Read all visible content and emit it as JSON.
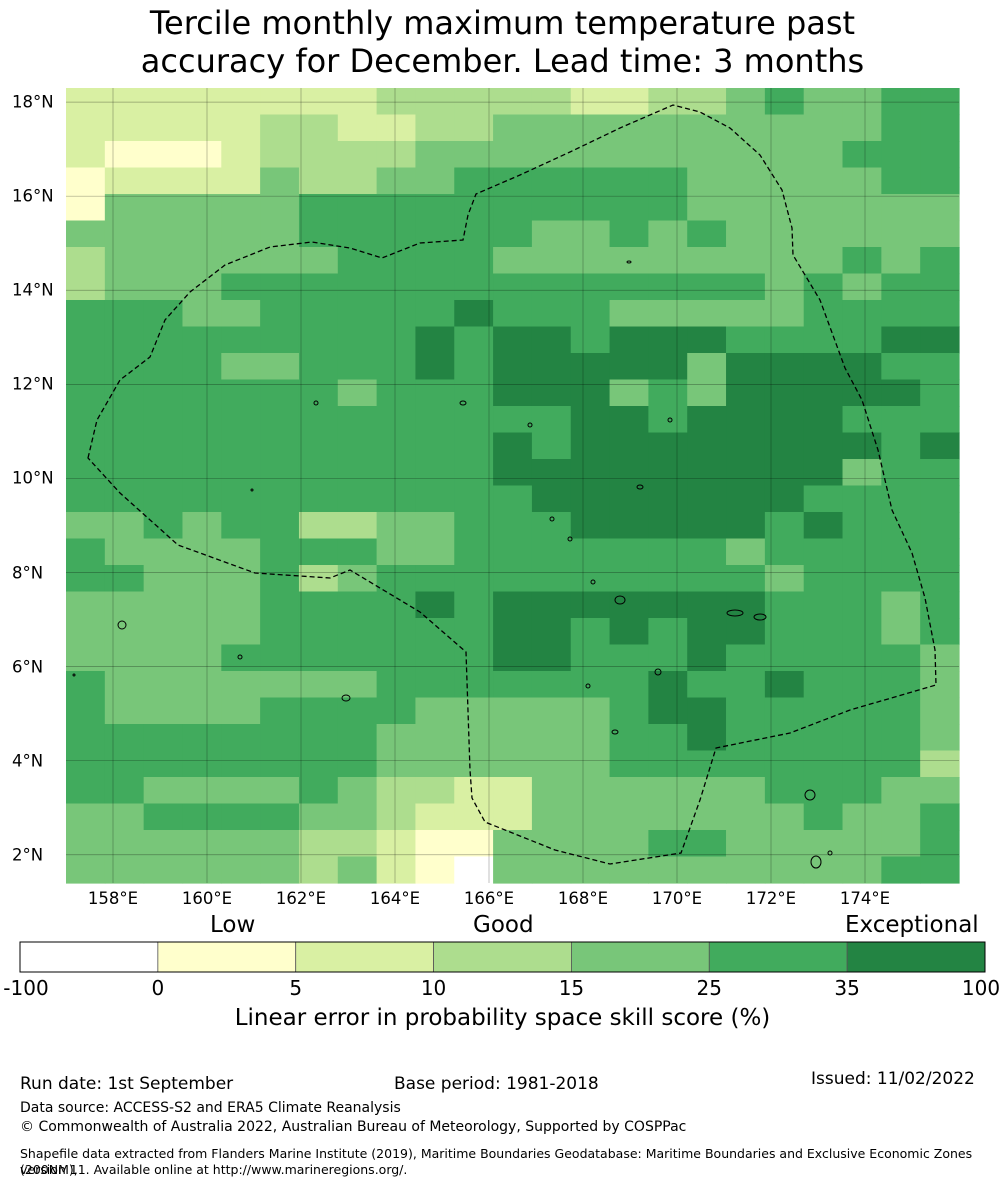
{
  "title_line1": "Tercile monthly maximum temperature past",
  "title_line2": "accuracy for December. Lead time: 3 months",
  "map": {
    "lon_range": [
      157.0,
      176.0
    ],
    "lat_range": [
      1.4,
      18.3
    ],
    "lat_ticks": [
      "18°N",
      "16°N",
      "14°N",
      "12°N",
      "10°N",
      "8°N",
      "6°N",
      "4°N",
      "2°N"
    ],
    "lon_ticks": [
      "158°E",
      "160°E",
      "162°E",
      "164°E",
      "166°E",
      "168°E",
      "170°E",
      "172°E",
      "174°E"
    ],
    "grid_cells": "skill-score heatmap by skill category",
    "boundary": "dashed EEZ line"
  },
  "colorbar": {
    "category_labels": [
      "Low",
      "Good",
      "Exceptional"
    ],
    "ticks": [
      "-100",
      "0",
      "5",
      "10",
      "15",
      "25",
      "35",
      "100"
    ],
    "colors": [
      "#ffffff",
      "#ffffcc",
      "#d9f0a3",
      "#addd8e",
      "#78c679",
      "#41ab5d",
      "#238443"
    ],
    "caption": "Linear error in probability space skill score (%)"
  },
  "footer": {
    "run_date": "Run date: 1st September",
    "base_period": "Base period: 1981-2018",
    "issued": "Issued: 11/02/2022",
    "data_source": "Data source: ACCESS-S2 and ERA5 Climate Reanalysis",
    "copyright": "© Commonwealth of Australia 2022, Australian Bureau of Meteorology, Supported by COSPPac",
    "shapefile_line1": "Shapefile data extracted from Flanders Marine Institute (2019), Maritime Boundaries Geodatabase: Maritime Boundaries and Exclusive Economic Zones (200NM),",
    "shapefile_line2": "version 11. Available online at http://www.marineregions.org/."
  }
}
